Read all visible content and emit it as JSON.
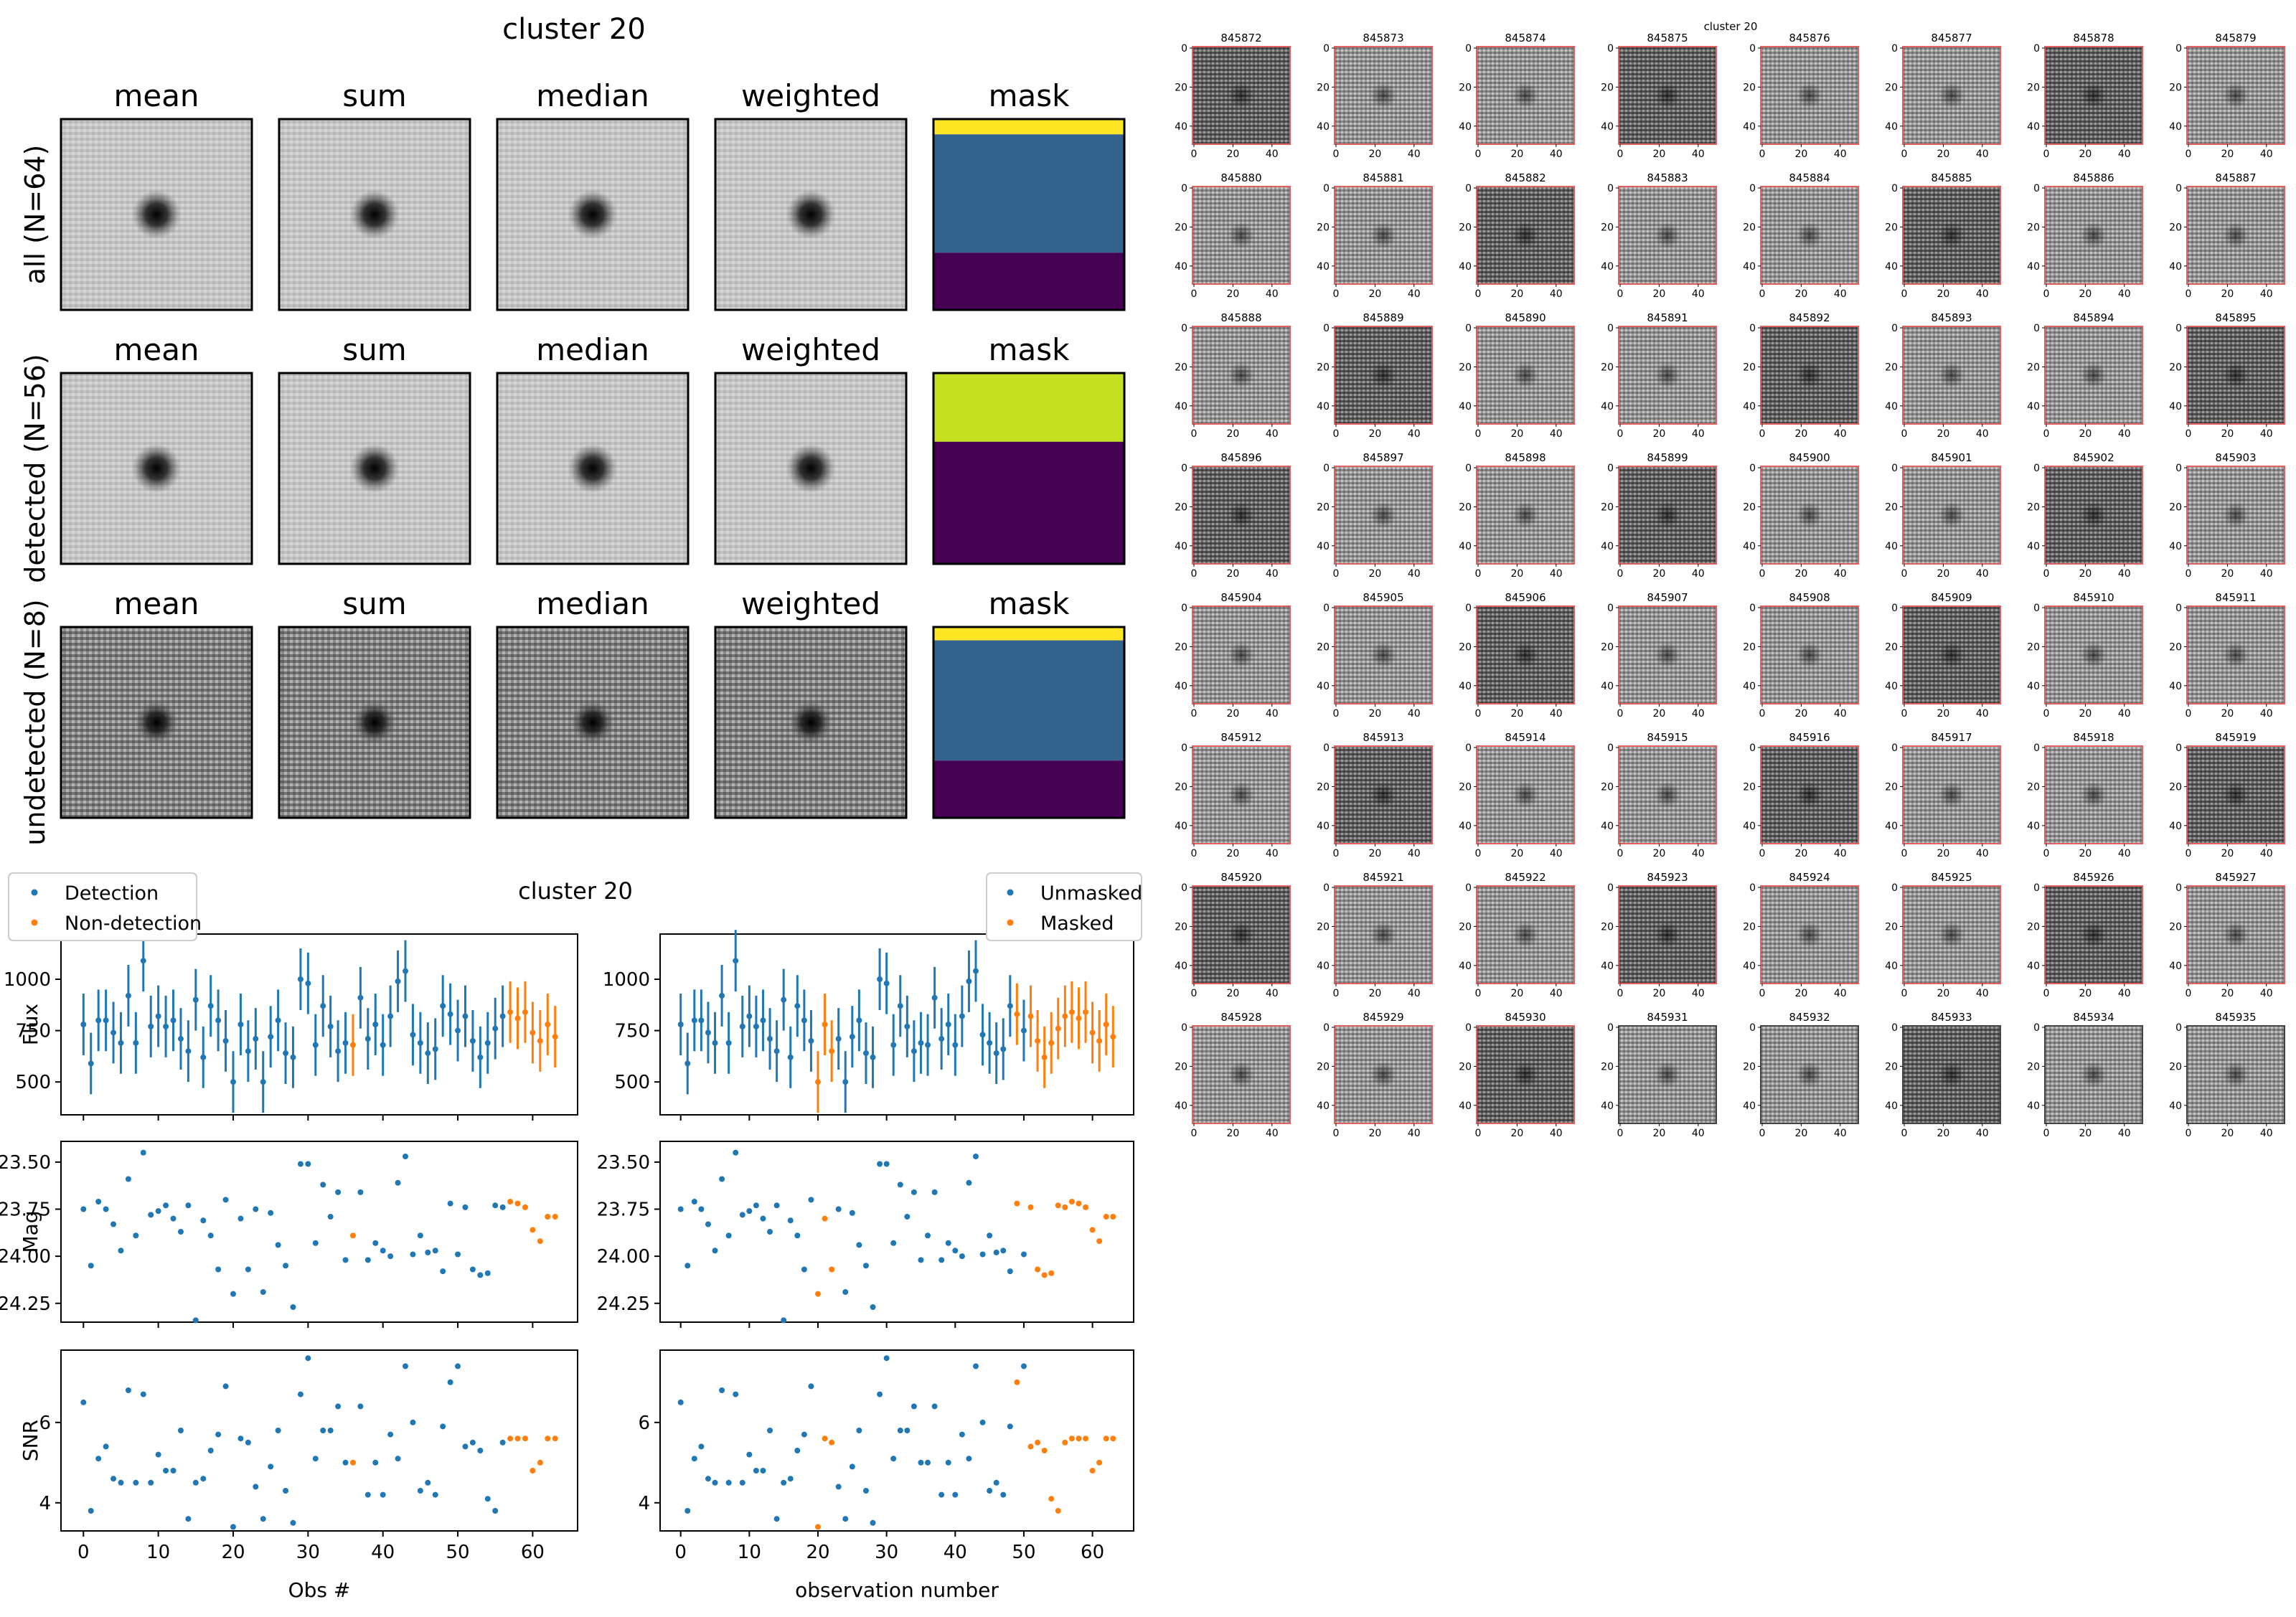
{
  "colors": {
    "detection": "#1f77b4",
    "non_detection": "#ff7f0e",
    "viridis_yellow": "#fde725",
    "viridis_lime": "#c5e021",
    "viridis_blue": "#33638d",
    "viridis_purple": "#440154",
    "cutout_frame": "#e06060"
  },
  "stacks": {
    "title": "cluster 20",
    "columns": [
      "mean",
      "sum",
      "median",
      "weighted",
      "mask"
    ],
    "rows": [
      {
        "label": "all (N=64)"
      },
      {
        "label": "detected (N=56)"
      },
      {
        "label": "undetected (N=8)"
      }
    ]
  },
  "lightcurve": {
    "title": "cluster 20",
    "legend_left": [
      "Detection",
      "Non-detection"
    ],
    "legend_right": [
      "Unmasked",
      "Masked"
    ],
    "ylabels": [
      "Flux",
      "Mag",
      "SNR"
    ],
    "xlabel_left": "Obs #",
    "xlabel_right": "observation number",
    "x_ticks": [
      "0",
      "10",
      "20",
      "30",
      "40",
      "50",
      "60"
    ],
    "flux_ticks": [
      "1000",
      "750",
      "500"
    ],
    "mag_ticks": [
      "23.50",
      "23.75",
      "24.00",
      "24.25"
    ],
    "snr_ticks": [
      "6",
      "4"
    ],
    "masked_obs_right": [
      20,
      21,
      22,
      49,
      51,
      52,
      53,
      54,
      55,
      56,
      57,
      58,
      59,
      60,
      61,
      62,
      63
    ]
  },
  "cutouts": {
    "title": "cluster 20",
    "first_id": 845872,
    "tick_labels_x": [
      "0",
      "20",
      "40"
    ],
    "tick_labels_y": [
      "0",
      "20",
      "40"
    ]
  },
  "chart_data": {
    "type": "scatter",
    "title": "cluster 20",
    "x": [
      0,
      1,
      2,
      3,
      4,
      5,
      6,
      7,
      8,
      9,
      10,
      11,
      12,
      13,
      14,
      15,
      16,
      17,
      18,
      19,
      20,
      21,
      22,
      23,
      24,
      25,
      26,
      27,
      28,
      29,
      30,
      31,
      32,
      33,
      34,
      35,
      36,
      37,
      38,
      39,
      40,
      41,
      42,
      43,
      44,
      45,
      46,
      47,
      48,
      49,
      50,
      51,
      52,
      53,
      54,
      55,
      56,
      57,
      58,
      59,
      60,
      61,
      62,
      63
    ],
    "series": [
      {
        "name": "Detection",
        "detected_through_obs": 55
      },
      {
        "name": "Non-detection",
        "non_detected_obs": [
          36,
          57,
          58,
          59,
          60,
          61,
          62,
          63
        ]
      }
    ],
    "flux": [
      780,
      590,
      800,
      800,
      740,
      690,
      920,
      690,
      1090,
      770,
      820,
      770,
      800,
      710,
      650,
      900,
      620,
      870,
      800,
      700,
      500,
      780,
      650,
      710,
      500,
      720,
      800,
      640,
      620,
      1000,
      980,
      680,
      870,
      770,
      650,
      690,
      680,
      910,
      710,
      780,
      680,
      820,
      990,
      1040,
      730,
      690,
      640,
      660,
      870,
      830,
      750,
      820,
      700,
      620,
      690,
      760,
      820,
      840,
      810,
      840,
      740,
      700,
      780,
      720
    ],
    "flux_err": [
      150,
      150,
      150,
      150,
      150,
      150,
      150,
      150,
      150,
      150,
      150,
      150,
      150,
      150,
      150,
      150,
      150,
      150,
      150,
      150,
      150,
      150,
      150,
      150,
      150,
      150,
      150,
      150,
      150,
      150,
      150,
      150,
      150,
      150,
      150,
      150,
      150,
      150,
      150,
      150,
      150,
      150,
      150,
      150,
      150,
      150,
      150,
      150,
      150,
      150,
      150,
      150,
      150,
      150,
      150,
      150,
      150,
      150,
      150,
      150,
      150,
      150,
      150,
      150
    ],
    "mag": [
      23.75,
      24.05,
      23.71,
      23.75,
      23.83,
      23.97,
      23.59,
      23.89,
      23.45,
      23.78,
      23.76,
      23.73,
      23.8,
      23.87,
      23.73,
      24.34,
      23.81,
      23.89,
      24.07,
      23.7,
      24.2,
      23.8,
      24.07,
      23.75,
      24.19,
      23.77,
      23.94,
      24.05,
      24.27,
      23.51,
      23.51,
      23.93,
      23.62,
      23.79,
      23.66,
      24.02,
      23.89,
      23.66,
      24.02,
      23.93,
      23.97,
      24.0,
      23.61,
      23.47,
      23.99,
      23.89,
      23.98,
      23.97,
      24.08,
      23.72,
      23.99,
      23.74,
      24.07,
      24.1,
      24.09,
      23.73,
      23.74,
      23.71,
      23.72,
      23.74,
      23.86,
      23.92,
      23.79,
      23.79
    ],
    "snr": [
      6.5,
      3.8,
      5.1,
      5.4,
      4.6,
      4.5,
      6.8,
      4.5,
      6.7,
      4.5,
      5.2,
      4.8,
      4.8,
      5.8,
      3.6,
      4.5,
      4.6,
      5.3,
      5.7,
      6.9,
      3.4,
      5.6,
      5.5,
      4.4,
      3.6,
      4.9,
      5.8,
      4.3,
      3.5,
      6.7,
      7.6,
      5.1,
      5.8,
      5.8,
      6.4,
      5.0,
      5.0,
      6.4,
      4.2,
      5.0,
      4.2,
      5.7,
      5.1,
      7.4,
      6.0,
      4.3,
      4.5,
      4.2,
      5.9,
      7.0,
      7.4,
      5.4,
      5.5,
      5.3,
      4.1,
      3.8,
      5.5,
      5.6,
      5.6,
      5.6,
      4.8,
      5.0,
      5.6,
      5.6
    ],
    "xlabel": "Obs #",
    "ylabels": [
      "Flux",
      "Mag",
      "SNR"
    ],
    "xlim": [
      -3,
      66
    ],
    "flux_ylim": [
      340,
      1220
    ],
    "mag_ylim": [
      24.35,
      23.39
    ],
    "snr_ylim": [
      3.3,
      7.8
    ],
    "grid": false,
    "legend": "top-left"
  }
}
